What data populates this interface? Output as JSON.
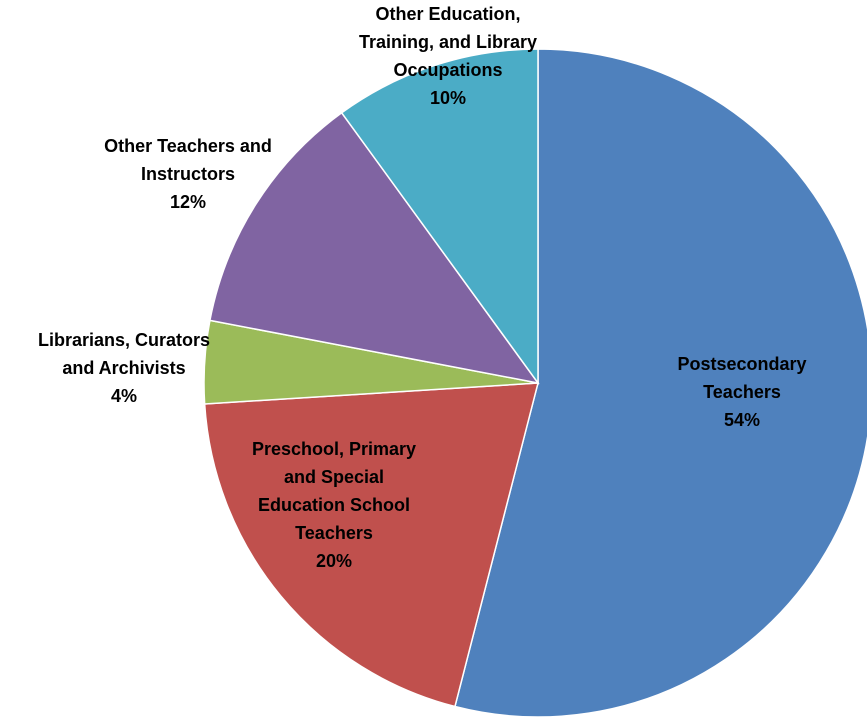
{
  "chart_data": {
    "type": "pie",
    "title": "",
    "slices": [
      {
        "label": [
          "Postsecondary",
          "Teachers"
        ],
        "value": 54,
        "display": "54%",
        "color": "#4F81BD"
      },
      {
        "label": [
          "Preschool, Primary",
          "and Special",
          "Education School",
          "Teachers"
        ],
        "value": 20,
        "display": "20%",
        "color": "#C0504D"
      },
      {
        "label": [
          "Librarians, Curators",
          "and Archivists"
        ],
        "value": 4,
        "display": "4%",
        "color": "#9BBB59"
      },
      {
        "label": [
          "Other Teachers and",
          "Instructors"
        ],
        "value": 12,
        "display": "12%",
        "color": "#8064A2"
      },
      {
        "label": [
          "Other Education,",
          "Training, and Library",
          "Occupations"
        ],
        "value": 10,
        "display": "10%",
        "color": "#4BACC6"
      }
    ]
  }
}
